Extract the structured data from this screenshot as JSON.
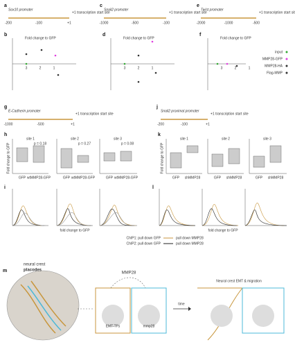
{
  "a": {
    "letter": "a",
    "title": "Sox10 promoter",
    "tss": "+1 transcription start site",
    "ticks": [
      "-200",
      "-100",
      "+1"
    ]
  },
  "c": {
    "letter": "c",
    "title": "Snail2 promoter",
    "tss": "+1 transcription start site",
    "ticks": [
      "-1000",
      "-500",
      "-100"
    ]
  },
  "e": {
    "letter": "e",
    "title": "Twist promoter",
    "tss": "+1 transcription start site",
    "ticks": [
      "-2000",
      "-1000",
      "-500"
    ]
  },
  "b": {
    "letter": "b",
    "ylabel": "Fold change to GFP",
    "xticks": [
      "3",
      "2",
      "1"
    ]
  },
  "d": {
    "letter": "d",
    "ylabel": "Fold change to GFP",
    "xticks": [
      "3",
      "2",
      "1"
    ]
  },
  "f": {
    "letter": "f",
    "ylabel": "Fold change to GFP",
    "xticks": [
      "3",
      "2",
      "1"
    ]
  },
  "legend": [
    "input",
    "MMP28-GFP",
    "MMP28-HA",
    "Flag-MMP"
  ],
  "g": {
    "letter": "g",
    "title": "E-Cadherin promoter",
    "tss": "+1 transcription start site",
    "ticks": [
      "-1000",
      "-500",
      "+1"
    ]
  },
  "j": {
    "letter": "j",
    "title": "Snail2 proximal promoter",
    "tss": "+1 transcription start site",
    "ticks": [
      "-200",
      "-100",
      "+1"
    ]
  },
  "h": {
    "letter": "h",
    "ylabel": "Fold change to GFP",
    "sites": [
      "site 1",
      "site 2",
      "site 3"
    ],
    "cats": [
      "GFP",
      "wtMMP28-GFP"
    ],
    "notes": [
      "p = 0.18",
      "p = 0.27",
      "p = 0.08"
    ]
  },
  "k": {
    "letter": "k",
    "ylabel": "Fold change to GFP",
    "sites": [
      "site 1",
      "site 2",
      "site 3"
    ],
    "cats": [
      "GFP",
      "shMMP28"
    ]
  },
  "i": {
    "letter": "i",
    "xlabel": "fold change to GFP"
  },
  "l": {
    "letter": "l",
    "xlabel": "fold change to GFP"
  },
  "chip": [
    "ChIP1: pull down GFP",
    "pull down MMP28",
    "ChIP2: pull down GFP",
    "pull down MMP28"
  ],
  "m": {
    "letter": "m",
    "labels": [
      "neural crest",
      "placodes",
      "MMP28",
      "time",
      "Neural crest EMT & migration",
      "EMT-TFs",
      "mmp28"
    ]
  }
}
